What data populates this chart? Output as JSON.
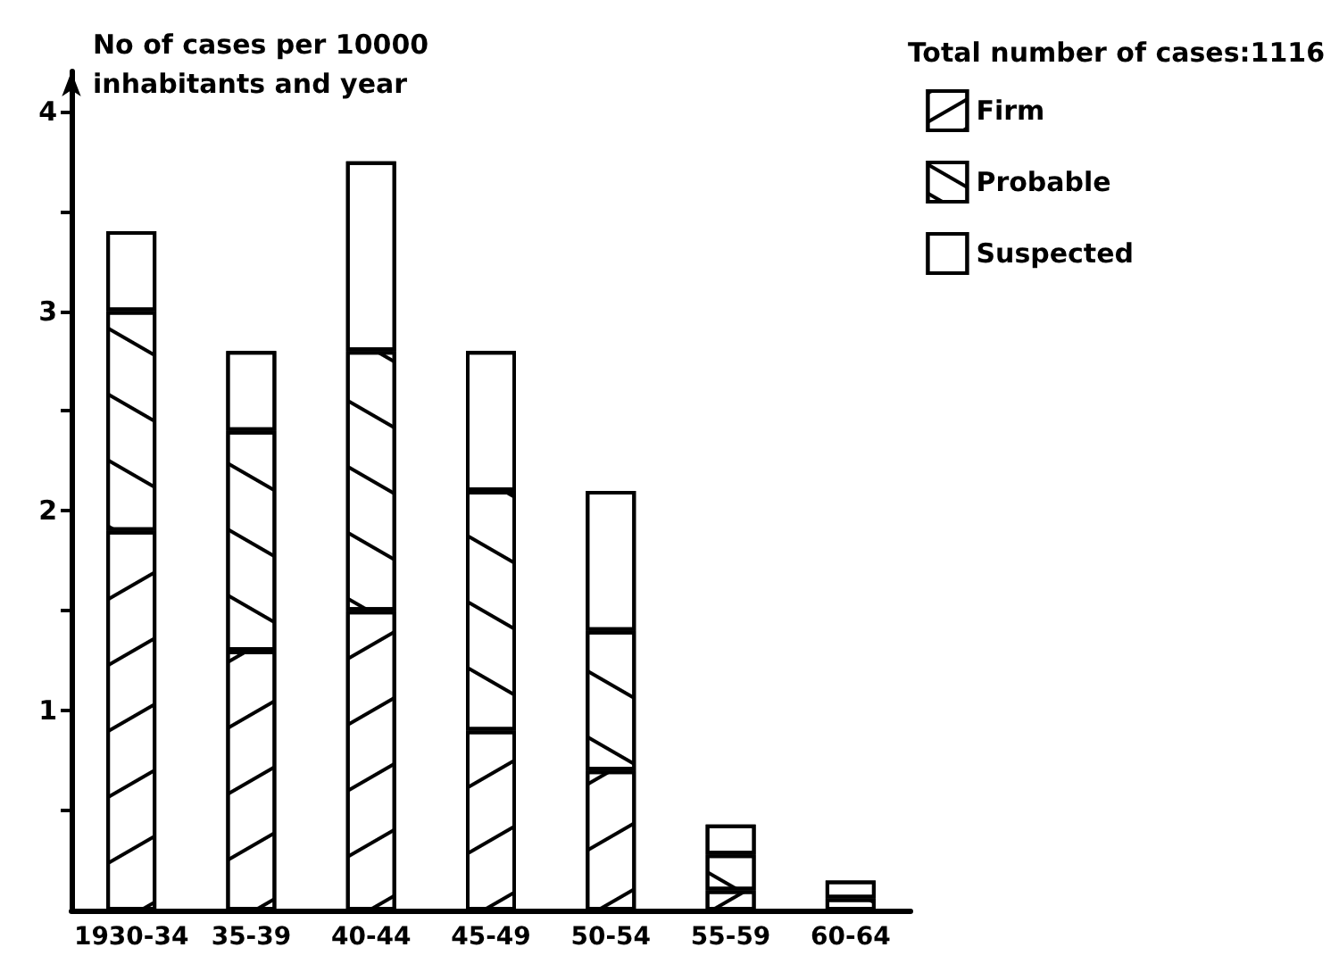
{
  "chart_data": {
    "type": "bar",
    "stacked": true,
    "ylabel": "No of cases per 10000 inhabitants and year",
    "annotations": [
      "Total number of cases:1116"
    ],
    "categories": [
      "1930-34",
      "35-39",
      "40-44",
      "45-49",
      "50-54",
      "55-59",
      "60-64"
    ],
    "series": [
      {
        "name": "Firm",
        "color": "#ffffff",
        "values": [
          1.9,
          1.3,
          1.5,
          0.9,
          0.7,
          0.1,
          null
        ]
      },
      {
        "name": "Probable",
        "color": "#ffffff",
        "values": [
          1.1,
          1.1,
          1.3,
          1.2,
          0.7,
          0.18,
          0.06
        ]
      },
      {
        "name": "Suspected",
        "color": "#ffffff",
        "values": [
          0.4,
          0.4,
          0.95,
          0.7,
          0.7,
          0.15,
          0.09
        ]
      }
    ],
    "ylim": [
      0,
      4.2
    ],
    "yticks": [
      {
        "value": 0.5,
        "label": null
      },
      1,
      {
        "value": 1.5,
        "label": null
      },
      2,
      {
        "value": 2.5,
        "label": null
      },
      3,
      {
        "value": 3.5,
        "label": null
      },
      4
    ],
    "grid": false,
    "legend": "top right"
  }
}
